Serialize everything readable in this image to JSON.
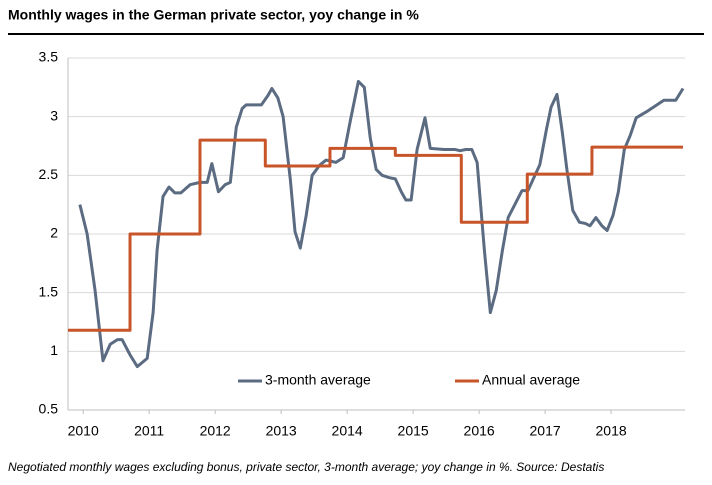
{
  "chart_data": {
    "type": "line",
    "title": "Monthly wages in the German private sector, yoy change in %",
    "footnote": "Negotiated monthly wages excluding bonus, private sector, 3-month average; yoy change in %. Source: Destatis",
    "xlim": [
      2009.77,
      2019.12
    ],
    "xticks": [
      2010,
      2011,
      2012,
      2013,
      2014,
      2015,
      2016,
      2017,
      2018
    ],
    "ylim": [
      0.5,
      3.5
    ],
    "yticks": [
      0.5,
      1,
      1.5,
      2,
      2.5,
      3,
      3.5
    ],
    "grid": true,
    "legend": "bottom",
    "series": [
      {
        "name": "3-month average",
        "color": "#5b6b82",
        "x": [
          2009.95,
          2010.06,
          2010.18,
          2010.3,
          2010.41,
          2010.52,
          2010.59,
          2010.71,
          2010.82,
          2010.97,
          2011.06,
          2011.12,
          2011.21,
          2011.3,
          2011.39,
          2011.48,
          2011.62,
          2011.77,
          2011.88,
          2011.95,
          2012.05,
          2012.15,
          2012.23,
          2012.32,
          2012.41,
          2012.47,
          2012.7,
          2012.8,
          2012.86,
          2012.95,
          2013.03,
          2013.14,
          2013.21,
          2013.29,
          2013.38,
          2013.47,
          2013.59,
          2013.68,
          2013.76,
          2013.83,
          2013.94,
          2014.05,
          2014.17,
          2014.26,
          2014.35,
          2014.44,
          2014.53,
          2014.64,
          2014.73,
          2014.82,
          2014.89,
          2014.97,
          2015.06,
          2015.18,
          2015.26,
          2015.47,
          2015.64,
          2015.71,
          2015.8,
          2015.89,
          2015.97,
          2016.08,
          2016.17,
          2016.26,
          2016.35,
          2016.44,
          2016.55,
          2016.65,
          2016.74,
          2016.83,
          2016.92,
          2017.02,
          2017.09,
          2017.18,
          2017.26,
          2017.33,
          2017.42,
          2017.52,
          2017.61,
          2017.68,
          2017.77,
          2017.86,
          2017.94,
          2018.03,
          2018.11,
          2018.2,
          2018.29,
          2018.38,
          2018.56,
          2018.8,
          2018.98,
          2019.09
        ],
        "values": [
          2.25,
          2.0,
          1.52,
          0.92,
          1.06,
          1.1,
          1.1,
          0.97,
          0.87,
          0.94,
          1.33,
          1.86,
          2.32,
          2.4,
          2.35,
          2.35,
          2.42,
          2.44,
          2.44,
          2.6,
          2.36,
          2.42,
          2.44,
          2.91,
          3.07,
          3.1,
          3.1,
          3.18,
          3.24,
          3.16,
          3.0,
          2.46,
          2.02,
          1.88,
          2.16,
          2.5,
          2.59,
          2.63,
          2.62,
          2.61,
          2.65,
          2.97,
          3.3,
          3.25,
          2.82,
          2.55,
          2.5,
          2.48,
          2.47,
          2.36,
          2.29,
          2.29,
          2.72,
          2.99,
          2.73,
          2.72,
          2.72,
          2.71,
          2.72,
          2.72,
          2.61,
          1.86,
          1.33,
          1.52,
          1.85,
          2.14,
          2.26,
          2.37,
          2.37,
          2.48,
          2.59,
          2.89,
          3.08,
          3.19,
          2.87,
          2.55,
          2.2,
          2.1,
          2.09,
          2.07,
          2.14,
          2.07,
          2.03,
          2.16,
          2.36,
          2.72,
          2.84,
          2.99,
          3.05,
          3.14,
          3.14,
          3.24
        ]
      },
      {
        "name": "Annual average",
        "color": "#c8552a",
        "x": [
          2009.77,
          2010.71,
          2010.71,
          2011.77,
          2011.77,
          2012.76,
          2012.76,
          2013.74,
          2013.74,
          2014.73,
          2014.73,
          2015.73,
          2015.73,
          2016.73,
          2016.73,
          2017.71,
          2017.71,
          2019.09
        ],
        "values": [
          1.18,
          1.18,
          2.0,
          2.0,
          2.8,
          2.8,
          2.58,
          2.58,
          2.73,
          2.73,
          2.67,
          2.67,
          2.1,
          2.1,
          2.51,
          2.51,
          2.74,
          2.74
        ]
      }
    ]
  }
}
